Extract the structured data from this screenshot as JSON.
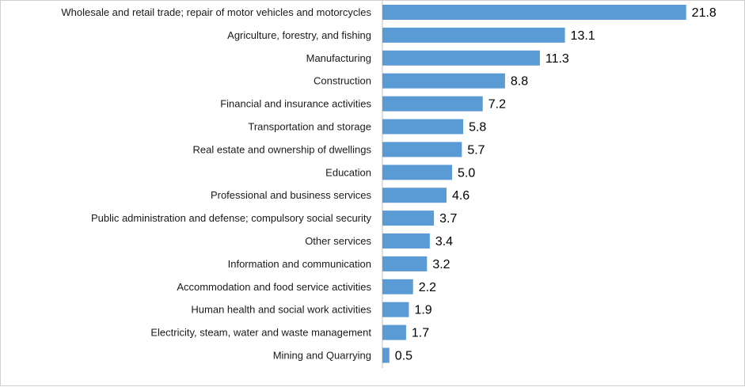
{
  "chart_data": {
    "type": "bar",
    "orientation": "horizontal",
    "title": "",
    "xlabel": "",
    "ylabel": "",
    "xlim": [
      0,
      22
    ],
    "grid": false,
    "legend": "none",
    "bar_color": "#5b9bd5",
    "categories": [
      "Wholesale and retail trade; repair of motor vehicles and motorcycles",
      "Agriculture, forestry, and fishing",
      "Manufacturing",
      "Construction",
      "Financial and insurance activities",
      "Transportation and storage",
      "Real estate and ownership of dwellings",
      "Education",
      "Professional and business services",
      "Public administration and defense; compulsory social security",
      "Other services",
      "Information and communication",
      "Accommodation and food service activities",
      "Human health and social work activities",
      "Electricity, steam, water and waste management",
      "Mining and Quarrying"
    ],
    "values": [
      21.8,
      13.1,
      11.3,
      8.8,
      7.2,
      5.8,
      5.7,
      5.0,
      4.6,
      3.7,
      3.4,
      3.2,
      2.2,
      1.9,
      1.7,
      0.5
    ],
    "value_labels": [
      "21.8",
      "13.1",
      "11.3",
      "8.8",
      "7.2",
      "5.8",
      "5.7",
      "5.0",
      "4.6",
      "3.7",
      "3.4",
      "3.2",
      "2.2",
      "1.9",
      "1.7",
      "0.5"
    ]
  }
}
